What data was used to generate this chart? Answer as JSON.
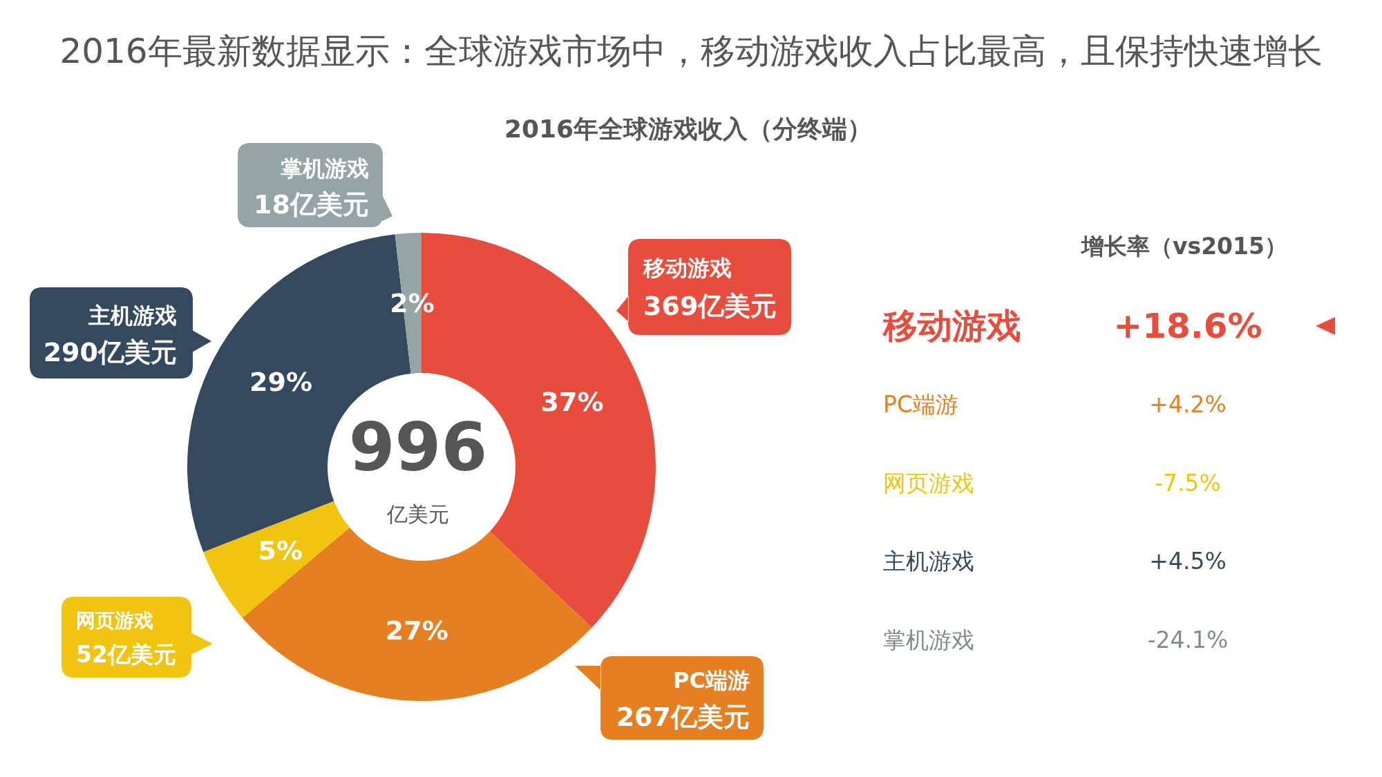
{
  "chart_data": [
    {
      "type": "donut",
      "title": "2016年最新数据显示：全球游戏市场中，移动游戏收入占比最高，且保持快速增长",
      "subtitle": "2016年全球游戏收入（分终端）",
      "categories": [
        "移动游戏",
        "PC端游",
        "网页游戏",
        "主机游戏",
        "掌机游戏"
      ],
      "values": [
        369,
        267,
        52,
        290,
        18
      ],
      "colors": [
        "#e74c3c",
        "#e67e22",
        "#f1c40f",
        "#34495e",
        "#95a5a6"
      ],
      "value_labels": [
        "369亿美元",
        "267亿美元",
        "52亿美元",
        "290亿美元",
        "18亿美元"
      ],
      "annotations": [
        {
          "text": "37%",
          "x": "移动游戏"
        },
        {
          "text": "27%",
          "x": "PC端游"
        },
        {
          "text": "5%",
          "x": "网页游戏"
        },
        {
          "text": "29%",
          "x": "主机游戏"
        },
        {
          "text": "2%",
          "x": "掌机游戏"
        },
        "996",
        "亿美元"
      ]
    },
    {
      "type": "other",
      "title": "增长率（vs2015）",
      "categories": [
        "移动游戏",
        "PC端游",
        "网页游戏",
        "主机游戏",
        "掌机游戏"
      ],
      "value_labels": [
        "+18.6%",
        "+4.2%",
        "-7.5%",
        "+4.5%",
        "-24.1%"
      ],
      "colors": [
        "#e74c3c",
        "#e67e22",
        "#f1c40f",
        "#34495e",
        "#7f8c8d"
      ]
    }
  ]
}
